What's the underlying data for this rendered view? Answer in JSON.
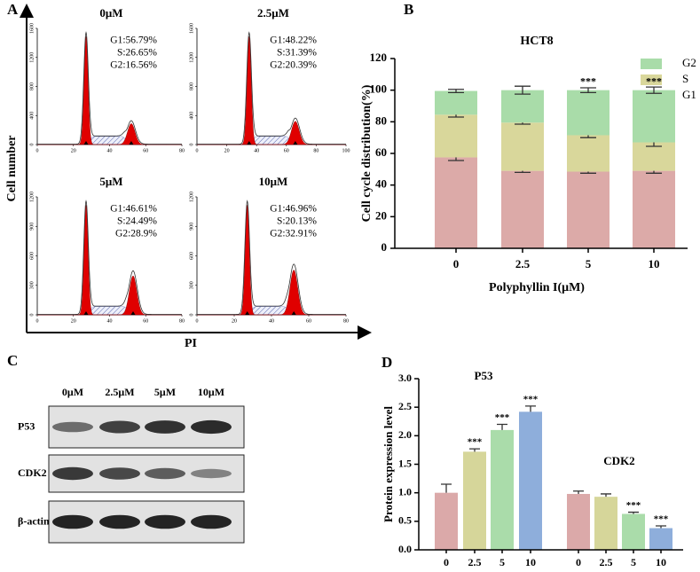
{
  "chart_data": [
    {
      "panel": "A",
      "type": "flow",
      "ylabel": "Cell number",
      "xlabel": "PI",
      "plots": [
        {
          "title": "0μM",
          "stats": [
            "G1:56.79%",
            "S:26.65%",
            "G2:16.56%"
          ],
          "xlim": [
            0,
            80
          ],
          "xticks": [
            0,
            20,
            40,
            60,
            80
          ],
          "ylim": [
            0,
            1600
          ],
          "yticks": [
            0,
            400,
            800,
            1200,
            1600
          ]
        },
        {
          "title": "2.5μM",
          "stats": [
            "G1:48.22%",
            "S:31.39%",
            "G2:20.39%"
          ],
          "xlim": [
            0,
            100
          ],
          "xticks": [
            0,
            20,
            40,
            60,
            80,
            100
          ],
          "ylim": [
            0,
            1600
          ],
          "yticks": [
            0,
            400,
            800,
            1200,
            1600
          ]
        },
        {
          "title": "5μM",
          "stats": [
            "G1:46.61%",
            "S:24.49%",
            "G2:28.9%"
          ],
          "xlim": [
            0,
            80
          ],
          "xticks": [
            0,
            20,
            40,
            60,
            80
          ],
          "ylim": [
            0,
            1200
          ],
          "yticks": [
            0,
            300,
            600,
            900,
            1200
          ]
        },
        {
          "title": "10μM",
          "stats": [
            "G1:46.96%",
            "S:20.13%",
            "G2:32.91%"
          ],
          "xlim": [
            0,
            80
          ],
          "xticks": [
            0,
            20,
            40,
            60,
            80
          ],
          "ylim": [
            0,
            1200
          ],
          "yticks": [
            0,
            300,
            600,
            900,
            1200
          ]
        }
      ]
    },
    {
      "panel": "B",
      "type": "stacked-bar",
      "title": "HCT8",
      "xlabel": "Polyphyllin I(μM)",
      "ylabel": "Cell cycle distribution(%)",
      "categories": [
        "0",
        "2.5",
        "5",
        "10"
      ],
      "ylim": [
        0,
        120
      ],
      "yticks": [
        0,
        20,
        40,
        60,
        80,
        100,
        120
      ],
      "series": [
        {
          "name": "G1",
          "color": "#dcaaa8",
          "values": [
            57.5,
            49,
            48.5,
            49
          ],
          "errors": [
            2,
            1,
            1,
            1.5
          ]
        },
        {
          "name": "S",
          "color": "#d9d79b",
          "values": [
            27,
            30.5,
            23,
            18
          ],
          "errors": [
            1.5,
            1,
            1.5,
            2.5
          ]
        },
        {
          "name": "G2",
          "color": "#a9dca9",
          "values": [
            15,
            20.5,
            28.5,
            33
          ],
          "errors": [
            1,
            2.5,
            1.5,
            2
          ]
        }
      ],
      "significance": [
        null,
        null,
        "***",
        "***"
      ]
    },
    {
      "panel": "C",
      "type": "blot",
      "lanes": [
        "0μM",
        "2.5μM",
        "5μM",
        "10μM"
      ],
      "rows": [
        "P53",
        "CDK2",
        "β-actin"
      ]
    },
    {
      "panel": "D",
      "type": "grouped-bar",
      "ylabel": "Protein expression level",
      "categories": [
        "0",
        "2.5",
        "5",
        "10"
      ],
      "colors": [
        "#dba9a9",
        "#d6d69a",
        "#aadcaa",
        "#8eaedb"
      ],
      "ylim": [
        0,
        3
      ],
      "yticks": [
        {
          "value": 0,
          "label": "0.0"
        },
        {
          "value": 0.5,
          "label": "0.5"
        },
        {
          "value": 1,
          "label": "1.0"
        },
        {
          "value": 1.5,
          "label": "1.5"
        },
        {
          "value": 2,
          "label": "2.0"
        },
        {
          "value": 2.5,
          "label": "2.5"
        },
        {
          "value": 3,
          "label": "3.0"
        }
      ],
      "groups": [
        {
          "name": "P53",
          "values": [
            1.0,
            1.72,
            2.1,
            2.42
          ],
          "errors": [
            0.15,
            0.05,
            0.1,
            0.1
          ],
          "significance": [
            null,
            "***",
            "***",
            "***"
          ]
        },
        {
          "name": "CDK2",
          "values": [
            0.98,
            0.93,
            0.63,
            0.38
          ],
          "errors": [
            0.05,
            0.05,
            0.03,
            0.04
          ],
          "significance": [
            null,
            null,
            "***",
            "***"
          ]
        }
      ]
    }
  ]
}
